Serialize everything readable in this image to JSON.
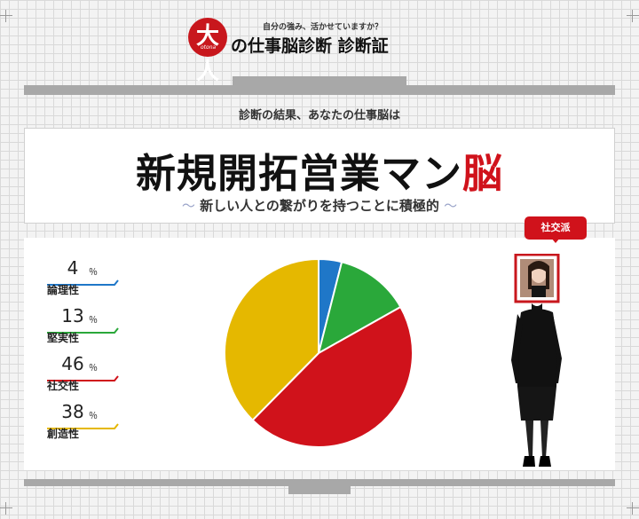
{
  "header": {
    "logo_kanji": "大人",
    "logo_sub": "otona",
    "tagline": "自分の強み、活かせていますか？",
    "title": "の仕事脳診断 診断証"
  },
  "intro_text": "診断の結果、あなたの仕事脳は",
  "result": {
    "type_name": "新規開拓営業マン",
    "type_suffix": "脳",
    "tilde_left": "〜",
    "description": "新しい人との繋がりを持つことに積極的",
    "tilde_right": "〜"
  },
  "unit": "％",
  "badge": "社交派",
  "colors": {
    "accent": "#d0121b",
    "logical": "#1f77c8",
    "steady": "#2aa83a",
    "social": "#d0121b",
    "creative": "#e5b800"
  },
  "chart_data": {
    "type": "pie",
    "categories": [
      "論理性",
      "堅実性",
      "社交性",
      "創造性"
    ],
    "values": [
      4,
      13,
      46,
      38
    ],
    "colors": [
      "#1f77c8",
      "#2aa83a",
      "#d0121b",
      "#e5b800"
    ],
    "title": "",
    "legend": "left"
  }
}
